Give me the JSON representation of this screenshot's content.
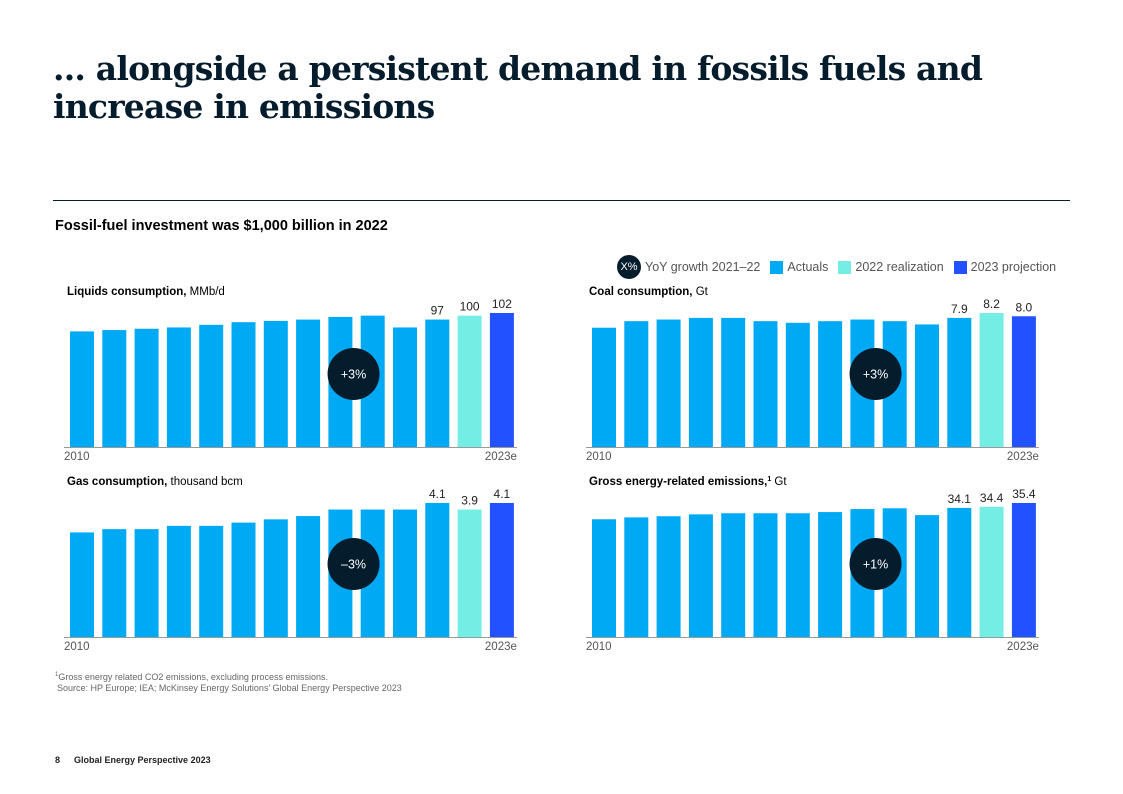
{
  "title": "... alongside a persistent demand in fossils fuels and increase in emissions",
  "subtitle": "Fossil-fuel investment was $1,000 billion in 2022",
  "legend": {
    "bubble": "X%",
    "growth": "YoY growth 2021–22",
    "actuals": "Actuals",
    "realization": "2022 realization",
    "projection": "2023 projection"
  },
  "colors": {
    "actuals": "#00a9f4",
    "realization": "#74ede5",
    "projection": "#2251ff",
    "bubble": "#051c2c"
  },
  "chart_data": [
    {
      "type": "bar",
      "title": "Liquids consumption,",
      "unit": "MMb/d",
      "x_start": "2010",
      "x_end": "2023e",
      "growth": "+3%",
      "values": [
        88,
        89,
        90,
        91,
        93,
        95,
        96,
        97,
        99,
        100,
        91,
        97,
        100,
        102
      ],
      "labels": [
        null,
        null,
        null,
        null,
        null,
        null,
        null,
        null,
        null,
        null,
        null,
        "97",
        "100",
        "102"
      ]
    },
    {
      "type": "bar",
      "title": "Coal consumption,",
      "unit": "Gt",
      "x_start": "2010",
      "x_end": "2023e",
      "growth": "+3%",
      "values": [
        7.3,
        7.7,
        7.8,
        7.9,
        7.9,
        7.7,
        7.6,
        7.7,
        7.8,
        7.7,
        7.5,
        7.9,
        8.2,
        8.0
      ],
      "labels": [
        null,
        null,
        null,
        null,
        null,
        null,
        null,
        null,
        null,
        null,
        null,
        "7.9",
        "8.2",
        "8.0"
      ]
    },
    {
      "type": "bar",
      "title": "Gas consumption,",
      "unit": "thousand bcm",
      "x_start": "2010",
      "x_end": "2023e",
      "growth": "–3%",
      "values": [
        3.2,
        3.3,
        3.3,
        3.4,
        3.4,
        3.5,
        3.6,
        3.7,
        3.9,
        3.9,
        3.9,
        4.1,
        3.9,
        4.1
      ],
      "labels": [
        null,
        null,
        null,
        null,
        null,
        null,
        null,
        null,
        null,
        null,
        null,
        "4.1",
        "3.9",
        "4.1"
      ]
    },
    {
      "type": "bar",
      "title": "Gross energy-related emissions,",
      "sup": "1",
      "unit": "Gt",
      "x_start": "2010",
      "x_end": "2023e",
      "growth": "+1%",
      "values": [
        31.1,
        31.6,
        31.9,
        32.4,
        32.7,
        32.7,
        32.7,
        33.0,
        33.8,
        34.0,
        32.2,
        34.1,
        34.4,
        35.4
      ],
      "labels": [
        null,
        null,
        null,
        null,
        null,
        null,
        null,
        null,
        null,
        null,
        null,
        "34.1",
        "34.4",
        "35.4"
      ]
    }
  ],
  "footnote": "Gross energy related CO2 emissions, excluding process emissions.",
  "footnote_mark": "1",
  "source": "Source: HP Europe; IEA; McKinsey Energy Solutions' Global Energy Perspective 2023",
  "page": {
    "number": "8",
    "name": "Global Energy Perspective 2023"
  }
}
